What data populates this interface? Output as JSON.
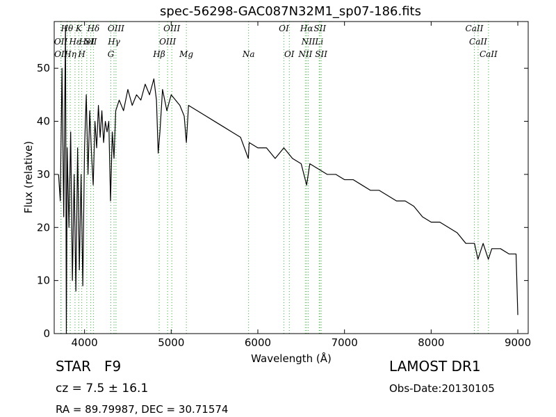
{
  "chart_data": {
    "type": "line",
    "title": "spec-56298-GAC087N32M1_sp07-186.fits",
    "x_label": "Wavelength (Å)",
    "y_label": "Flux (relative)",
    "xlim": [
      3650,
      9120
    ],
    "ylim": [
      0,
      58.8
    ],
    "xticks": [
      4000,
      5000,
      6000,
      7000,
      8000,
      9000
    ],
    "yticks": [
      0,
      10,
      20,
      30,
      40,
      50
    ],
    "color": "#000000",
    "line_color": "#33aa33",
    "x": [
      3700,
      3720,
      3740,
      3760,
      3780,
      3790,
      3800,
      3820,
      3840,
      3860,
      3880,
      3900,
      3920,
      3940,
      3960,
      3980,
      4000,
      4020,
      4040,
      4060,
      4080,
      4100,
      4120,
      4140,
      4160,
      4180,
      4200,
      4220,
      4240,
      4260,
      4280,
      4300,
      4320,
      4340,
      4360,
      4400,
      4450,
      4500,
      4550,
      4600,
      4650,
      4700,
      4750,
      4800,
      4830,
      4850,
      4870,
      4900,
      4950,
      5000,
      5050,
      5100,
      5150,
      5175,
      5200,
      5300,
      5400,
      5500,
      5600,
      5700,
      5800,
      5890,
      5900,
      6000,
      6100,
      6200,
      6300,
      6400,
      6500,
      6563,
      6600,
      6700,
      6800,
      6900,
      7000,
      7100,
      7200,
      7300,
      7400,
      7500,
      7600,
      7700,
      7800,
      7900,
      8000,
      8100,
      8200,
      8300,
      8400,
      8500,
      8540,
      8600,
      8660,
      8700,
      8800,
      8900,
      8980,
      9000
    ],
    "values": [
      30,
      25,
      50,
      22,
      58,
      0,
      35,
      20,
      38,
      10,
      30,
      8,
      35,
      12,
      30,
      9,
      35,
      45,
      30,
      42,
      34,
      28,
      40,
      35,
      43,
      37,
      42,
      36,
      40,
      38,
      40,
      25,
      38,
      33,
      42,
      44,
      42,
      46,
      43,
      45,
      44,
      47,
      45,
      48,
      44,
      34,
      38,
      46,
      42,
      45,
      44,
      43,
      41,
      36,
      43,
      42,
      41,
      40,
      39,
      38,
      37,
      33,
      36,
      35,
      35,
      33,
      35,
      33,
      32,
      28,
      32,
      31,
      30,
      30,
      29,
      29,
      28,
      27,
      27,
      26,
      25,
      25,
      24,
      22,
      21,
      21,
      20,
      19,
      17,
      17,
      14,
      17,
      14,
      16,
      16,
      15,
      15,
      3.5
    ],
    "annotations": [
      [
        {
          "text": "Hθ",
          "x": 3798
        },
        {
          "text": "K",
          "x": 3934
        },
        {
          "text": "Hδ",
          "x": 4102
        },
        {
          "text": "OIII",
          "x": 4363
        },
        {
          "text": "OIII",
          "x": 5007
        },
        {
          "text": "OI",
          "x": 6300
        },
        {
          "text": "Hα",
          "x": 6563
        },
        {
          "text": "SII",
          "x": 6716
        },
        {
          "text": "CaII",
          "x": 8498
        }
      ],
      [
        {
          "text": "OII",
          "x": 3727
        },
        {
          "text": "Hε",
          "x": 3890
        },
        {
          "text": "HeI",
          "x": 4026
        },
        {
          "text": "SII",
          "x": 4072
        },
        {
          "text": "Hγ",
          "x": 4340
        },
        {
          "text": "OIII",
          "x": 4959
        },
        {
          "text": "NII",
          "x": 6583
        },
        {
          "text": "Li",
          "x": 6708
        },
        {
          "text": "CaII",
          "x": 8542
        }
      ],
      [
        {
          "text": "OII",
          "x": 3729
        },
        {
          "text": "Hη",
          "x": 3835
        },
        {
          "text": "H",
          "x": 3968
        },
        {
          "text": "G",
          "x": 4304
        },
        {
          "text": "Hβ",
          "x": 4861
        },
        {
          "text": "Mg",
          "x": 5175
        },
        {
          "text": "Na",
          "x": 5893
        },
        {
          "text": "OI",
          "x": 6363
        },
        {
          "text": "NII",
          "x": 6548
        },
        {
          "text": "SII",
          "x": 6731
        },
        {
          "text": "CaII",
          "x": 8662
        }
      ]
    ],
    "object_class": "STAR   F9",
    "redshift": "cz = 7.5 ± 16.1",
    "coordinates": "RA = 89.79987, DEC = 30.71574",
    "survey": "LAMOST DR1",
    "obs_date": "Obs-Date:20130105"
  }
}
